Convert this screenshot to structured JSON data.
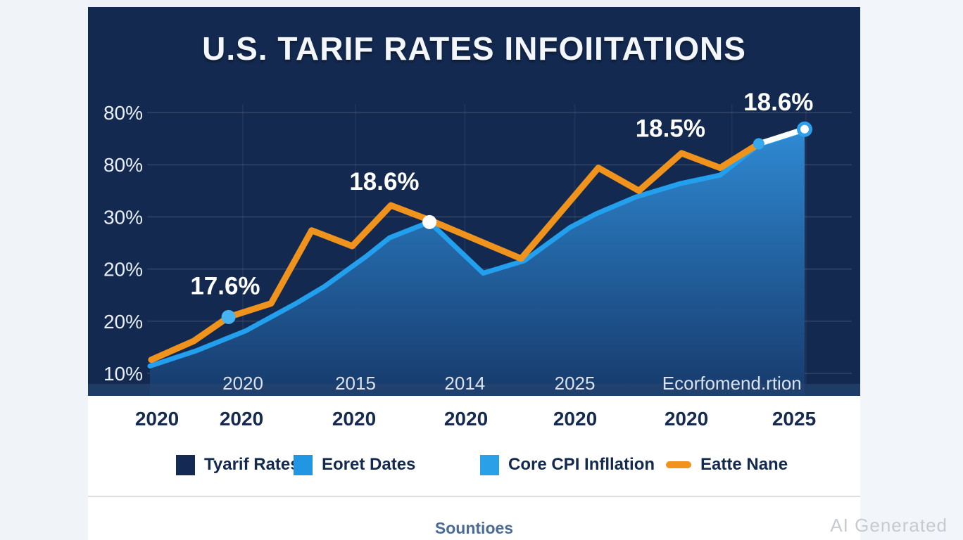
{
  "chart_data": {
    "type": "area",
    "title": "U.S. TARIF RATES INFOIITATIONS",
    "y_axis": {
      "ticks": [
        "80%",
        "80%",
        "30%",
        "20%",
        "20%",
        "10%"
      ],
      "value_range": [
        10,
        35
      ],
      "grid": true
    },
    "x_axis": {
      "inner_labels": [
        {
          "text": "2020",
          "x": 14.2
        },
        {
          "text": "2015",
          "x": 31.4
        },
        {
          "text": "2014",
          "x": 48.1
        },
        {
          "text": "2025",
          "x": 64.9
        },
        {
          "text": "Ecorfomend.rtion",
          "x": 88.9
        }
      ],
      "grid": true
    },
    "series": [
      {
        "name": "Core CPI Inflation",
        "kind": "area-line",
        "color": "#22a0ee",
        "fill_top": "#2f8ad3",
        "fill_mid": "#22619f",
        "fill_bottom": "#173a6b",
        "points": [
          [
            0,
            10.7
          ],
          [
            7.2,
            12.2
          ],
          [
            14.7,
            14.1
          ],
          [
            22.3,
            16.7
          ],
          [
            26.6,
            18.3
          ],
          [
            33,
            21.2
          ],
          [
            36.6,
            23
          ],
          [
            42.7,
            24.5
          ],
          [
            50.9,
            19.6
          ],
          [
            57.2,
            20.8
          ],
          [
            64.2,
            24
          ],
          [
            68.2,
            25.3
          ],
          [
            74.2,
            26.9
          ],
          [
            81.1,
            28.2
          ],
          [
            87.1,
            29
          ],
          [
            93,
            31.9
          ],
          [
            100,
            33.3
          ]
        ]
      },
      {
        "name": "Eatte Nane",
        "kind": "line",
        "color": "#f0931d",
        "points": [
          [
            0.2,
            11.3
          ],
          [
            6.7,
            13.1
          ],
          [
            12,
            15.4
          ],
          [
            18.5,
            16.7
          ],
          [
            24.7,
            23.7
          ],
          [
            30.9,
            22.2
          ],
          [
            36.8,
            26.1
          ],
          [
            42.7,
            24.7
          ],
          [
            56.7,
            21
          ],
          [
            68.5,
            29.7
          ],
          [
            74.7,
            27.5
          ],
          [
            81.2,
            31.1
          ],
          [
            87.1,
            29.7
          ],
          [
            93,
            32
          ]
        ]
      },
      {
        "name": "forecast-segment",
        "kind": "line",
        "color": "#ffffff",
        "points": [
          [
            93,
            32
          ],
          [
            100,
            33.4
          ]
        ]
      }
    ],
    "markers": [
      {
        "x": 12,
        "v": 15.4,
        "r": 10,
        "fill": "#47b4f1"
      },
      {
        "x": 42.7,
        "v": 24.5,
        "r": 10,
        "fill": "#ffffff"
      },
      {
        "x": 93,
        "v": 32,
        "r": 8,
        "fill": "#35a7ec"
      },
      {
        "x": 100,
        "v": 33.4,
        "r": 8.5,
        "fill": "#ffffff",
        "ring": "#2d9fe8"
      }
    ],
    "annotations": [
      {
        "text": "17.6%",
        "x": 11.5,
        "v": 18.4
      },
      {
        "text": "18.6%",
        "x": 35.8,
        "v": 28.4
      },
      {
        "text": "18.5%",
        "x": 79.5,
        "v": 33.5
      },
      {
        "text": "18.6%",
        "x": 96.0,
        "v": 36.0
      }
    ]
  },
  "bottom_axis": {
    "labels": [
      "2020",
      "2020",
      "2020",
      "2020",
      "2020",
      "2020",
      "2025"
    ]
  },
  "legend": {
    "items": [
      {
        "label": "Tyarif Rates",
        "swatch": "square",
        "color": "#152a52"
      },
      {
        "label": "Eoret Dates",
        "swatch": "square",
        "color": "#2196e3"
      },
      {
        "label": "Core CPI Infllation",
        "swatch": "square",
        "color": "#29a0e8"
      },
      {
        "label": "Eatte Nane",
        "swatch": "dash",
        "color": "#f0921c"
      }
    ]
  },
  "footer": {
    "source_label": "Sountioes",
    "watermark": "AI Generated"
  },
  "colors": {
    "panel_bg": "#13294f",
    "bottom_strip": "#24436f",
    "grid_h": "rgba(255,255,255,0.10)",
    "grid_v": "rgba(255,255,255,0.05)"
  }
}
